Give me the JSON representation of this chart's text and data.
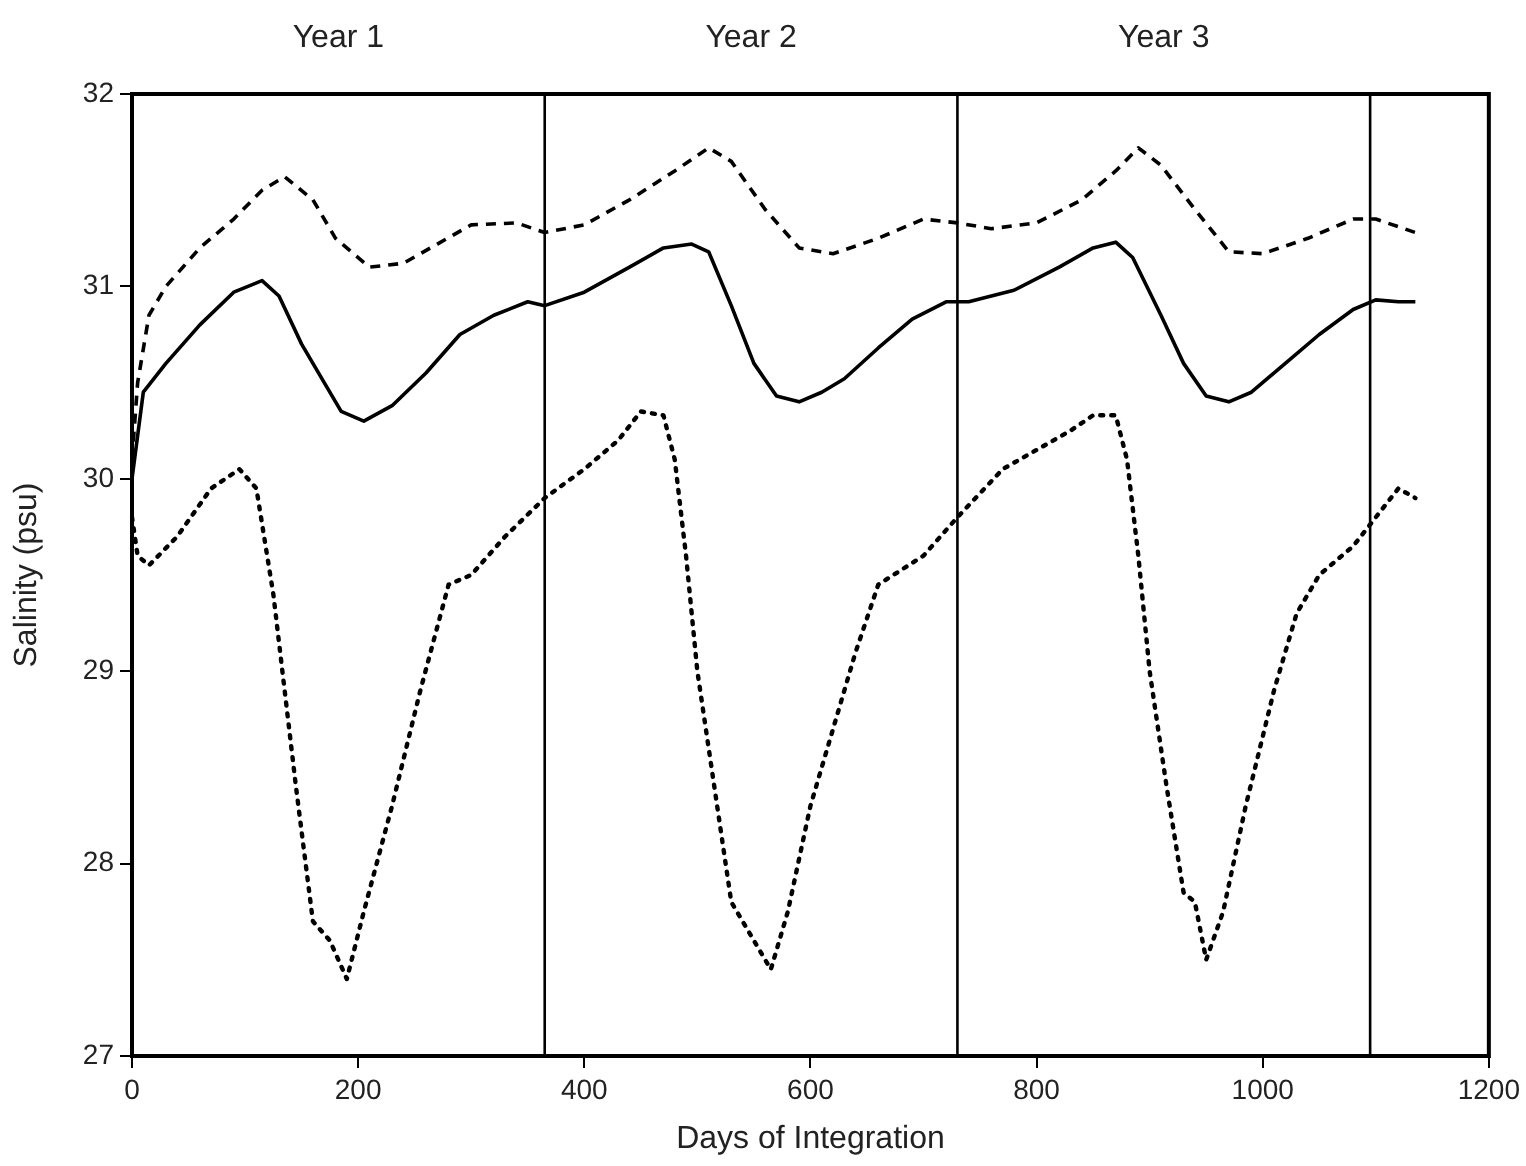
{
  "chart_data": {
    "type": "line",
    "xlabel": "Days of Integration",
    "ylabel": "Salinity (psu)",
    "xlim": [
      0,
      1200
    ],
    "xticks": [
      0,
      200,
      400,
      600,
      800,
      1000,
      1200
    ],
    "ylim": [
      27,
      32
    ],
    "yticks": [
      27,
      28,
      29,
      30,
      31,
      32
    ],
    "grid": false,
    "legend": false,
    "marker": "none",
    "annotations": [
      "Year 1",
      "Year 2",
      "Year 3"
    ],
    "ref_lines": [
      {
        "axis": "x",
        "value": 365,
        "color": "#000000"
      },
      {
        "axis": "x",
        "value": 730,
        "color": "#000000"
      },
      {
        "axis": "x",
        "value": 1095,
        "color": "#000000"
      }
    ],
    "series": [
      {
        "color": "#000000",
        "line_style": "solid",
        "x": [
          0,
          10,
          30,
          60,
          90,
          115,
          130,
          150,
          170,
          185,
          205,
          230,
          260,
          290,
          320,
          350,
          365,
          400,
          440,
          470,
          495,
          510,
          530,
          550,
          570,
          590,
          610,
          630,
          660,
          690,
          720,
          740,
          780,
          820,
          850,
          870,
          885,
          910,
          930,
          950,
          970,
          990,
          1020,
          1050,
          1080,
          1100,
          1120,
          1135
        ],
        "values": [
          30.0,
          30.45,
          30.6,
          30.8,
          30.97,
          31.03,
          30.95,
          30.7,
          30.5,
          30.35,
          30.3,
          30.38,
          30.55,
          30.75,
          30.85,
          30.92,
          30.9,
          30.97,
          31.1,
          31.2,
          31.22,
          31.18,
          30.9,
          30.6,
          30.43,
          30.4,
          30.45,
          30.52,
          30.68,
          30.83,
          30.92,
          30.92,
          30.98,
          31.1,
          31.2,
          31.23,
          31.15,
          30.85,
          30.6,
          30.43,
          30.4,
          30.45,
          30.6,
          30.75,
          30.88,
          30.93,
          30.92,
          30.92
        ]
      },
      {
        "color": "#000000",
        "line_style": "dashed",
        "x": [
          0,
          5,
          15,
          30,
          60,
          90,
          115,
          135,
          160,
          180,
          210,
          240,
          270,
          300,
          340,
          365,
          400,
          440,
          480,
          510,
          530,
          560,
          590,
          620,
          660,
          700,
          730,
          760,
          800,
          840,
          870,
          890,
          910,
          940,
          970,
          1000,
          1040,
          1080,
          1100,
          1135
        ],
        "values": [
          30.1,
          30.5,
          30.85,
          31.0,
          31.2,
          31.35,
          31.5,
          31.57,
          31.45,
          31.25,
          31.1,
          31.12,
          31.22,
          31.32,
          31.33,
          31.28,
          31.32,
          31.45,
          31.6,
          31.72,
          31.65,
          31.4,
          31.2,
          31.17,
          31.25,
          31.35,
          31.33,
          31.3,
          31.33,
          31.45,
          31.6,
          31.72,
          31.63,
          31.4,
          31.18,
          31.17,
          31.25,
          31.35,
          31.35,
          31.28
        ]
      },
      {
        "color": "#000000",
        "line_style": "dotted",
        "x": [
          0,
          5,
          15,
          40,
          70,
          95,
          110,
          125,
          135,
          145,
          160,
          175,
          190,
          205,
          230,
          255,
          280,
          300,
          330,
          365,
          400,
          430,
          450,
          470,
          480,
          490,
          500,
          515,
          530,
          550,
          565,
          580,
          600,
          620,
          640,
          660,
          700,
          730,
          770,
          800,
          830,
          850,
          870,
          880,
          890,
          900,
          915,
          930,
          940,
          950,
          965,
          985,
          1010,
          1030,
          1050,
          1080,
          1100,
          1120,
          1135
        ],
        "values": [
          29.8,
          29.6,
          29.55,
          29.7,
          29.95,
          30.05,
          29.95,
          29.4,
          28.9,
          28.4,
          27.7,
          27.6,
          27.4,
          27.75,
          28.3,
          28.9,
          29.45,
          29.5,
          29.7,
          29.9,
          30.05,
          30.2,
          30.35,
          30.33,
          30.1,
          29.6,
          29.0,
          28.4,
          27.8,
          27.6,
          27.45,
          27.75,
          28.3,
          28.7,
          29.1,
          29.45,
          29.6,
          29.8,
          30.05,
          30.15,
          30.25,
          30.33,
          30.33,
          30.1,
          29.6,
          29.0,
          28.4,
          27.85,
          27.8,
          27.5,
          27.75,
          28.3,
          28.9,
          29.3,
          29.5,
          29.65,
          29.8,
          29.95,
          29.9
        ]
      }
    ]
  }
}
